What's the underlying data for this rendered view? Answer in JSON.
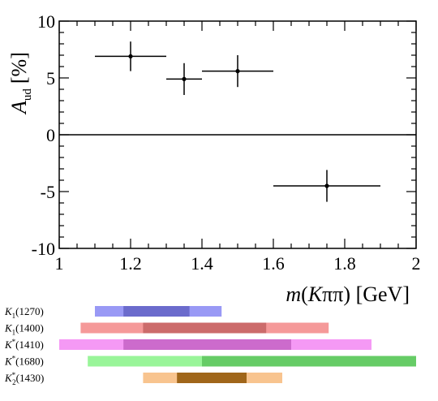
{
  "chart_data": {
    "type": "scatter",
    "title": "",
    "xlabel": "m(Kππ) [GeV]",
    "ylabel": "A_ud [%]",
    "xlim": [
      1,
      2
    ],
    "ylim": [
      -10,
      10
    ],
    "x_ticks": [
      "1",
      "1.2",
      "1.4",
      "1.6",
      "1.8",
      "2"
    ],
    "y_ticks": [
      "-10",
      "-5",
      "0",
      "5",
      "10"
    ],
    "zero_line": true,
    "grid": false,
    "points": [
      {
        "x": 1.2,
        "xerr": 0.1,
        "y": 6.9,
        "yerr": 1.3
      },
      {
        "x": 1.35,
        "xerr": 0.05,
        "y": 4.9,
        "yerr": 1.4
      },
      {
        "x": 1.5,
        "xerr": 0.1,
        "y": 5.6,
        "yerr": 1.4
      },
      {
        "x": 1.75,
        "xerr": 0.15,
        "y": -4.5,
        "yerr": 1.4
      }
    ],
    "resonances": [
      {
        "label": "K1(1270)",
        "name": "K",
        "sub": "1",
        "sup": "",
        "mass": "(1270)",
        "outer": [
          1.1,
          1.455
        ],
        "inner": [
          1.18,
          1.365
        ],
        "light": "#9999f5",
        "dark": "#6b6bcc"
      },
      {
        "label": "K1(1400)",
        "name": "K",
        "sub": "1",
        "sup": "",
        "mass": "(1400)",
        "outer": [
          1.06,
          1.755
        ],
        "inner": [
          1.235,
          1.58
        ],
        "light": "#f59999",
        "dark": "#cc6b6b"
      },
      {
        "label": "K*(1410)",
        "name": "K",
        "sub": "",
        "sup": "*",
        "mass": "(1410)",
        "outer": [
          1.0,
          1.875
        ],
        "inner": [
          1.18,
          1.65
        ],
        "light": "#f599f5",
        "dark": "#cc6bcc"
      },
      {
        "label": "K*(1680)",
        "name": "K",
        "sub": "",
        "sup": "*",
        "mass": "(1680)",
        "outer": [
          1.08,
          2.0
        ],
        "inner": [
          1.4,
          2.0
        ],
        "light": "#99f599",
        "dark": "#66cc66"
      },
      {
        "label": "K2*(1430)",
        "name": "K",
        "sub": "2",
        "sup": "*",
        "mass": "(1430)",
        "outer": [
          1.235,
          1.625
        ],
        "inner": [
          1.33,
          1.525
        ],
        "light": "#f8c48f",
        "dark": "#a0661a"
      }
    ]
  }
}
